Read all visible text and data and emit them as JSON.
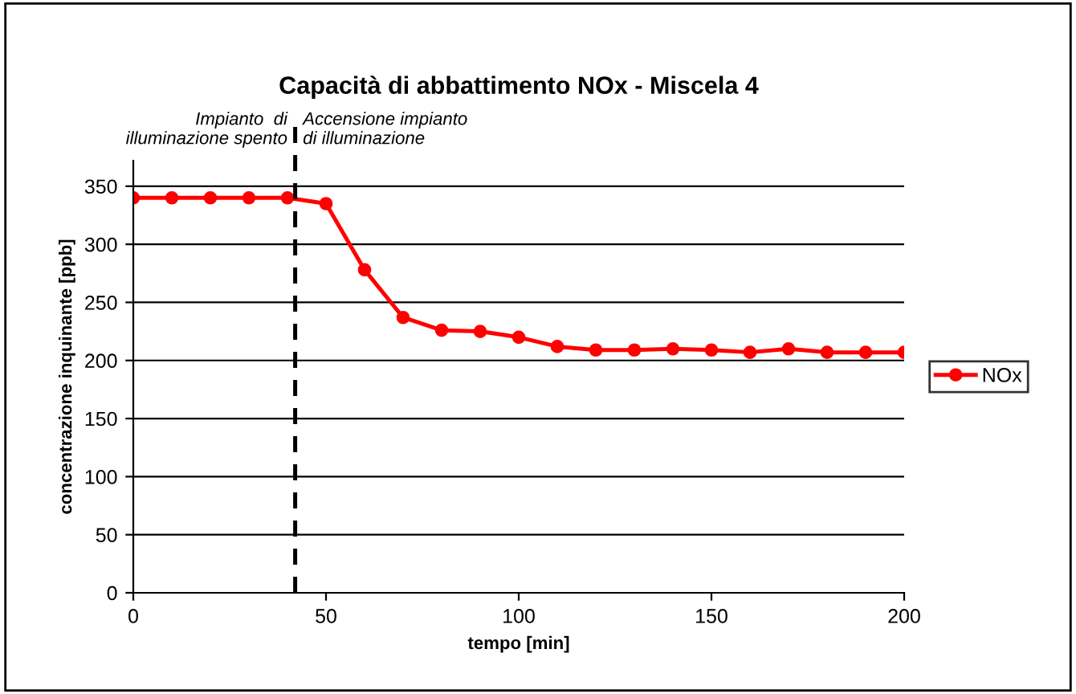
{
  "chart_data": {
    "type": "line",
    "title": "Capacità di abbattimento NOx - Miscela 4",
    "xlabel": "tempo [min]",
    "ylabel": "concentrazione inquinante [ppb]",
    "x": [
      0,
      10,
      20,
      30,
      40,
      50,
      60,
      70,
      80,
      90,
      100,
      110,
      120,
      130,
      140,
      150,
      160,
      170,
      180,
      190,
      200
    ],
    "series": [
      {
        "name": "NOx",
        "color": "#ff0000",
        "values": [
          340,
          340,
          340,
          340,
          340,
          335,
          278,
          237,
          226,
          225,
          220,
          212,
          209,
          209,
          210,
          209,
          207,
          210,
          207,
          207,
          207
        ]
      }
    ],
    "xlim": [
      0,
      200
    ],
    "xticks": [
      0,
      50,
      100,
      150,
      200
    ],
    "ylim": [
      0,
      372
    ],
    "yticks": [
      0,
      50,
      100,
      150,
      200,
      250,
      300,
      350
    ],
    "ref_lines": [
      {
        "axis": "x",
        "value": 42,
        "color": "#000000",
        "line_style": "dashed"
      }
    ],
    "annotations": [
      "Impianto  di\nilluminazione spento",
      "Accensione impianto\ndi illuminazione"
    ],
    "grid": "y",
    "legend": "right",
    "marker": "circle",
    "line_style": "solid"
  }
}
